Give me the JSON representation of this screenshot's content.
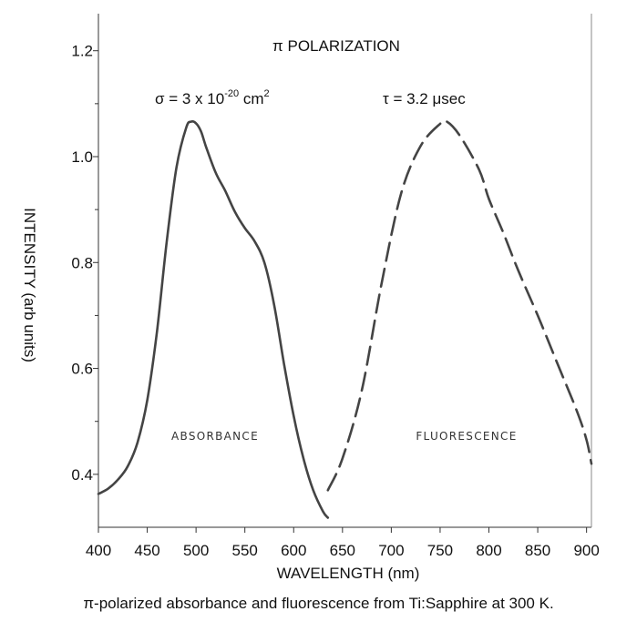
{
  "chart_data": {
    "type": "line",
    "title": "π POLARIZATION",
    "xlabel": "WAVELENGTH (nm)",
    "ylabel": "INTENSITY (arb units)",
    "xlim": [
      400,
      905
    ],
    "ylim": [
      0.3,
      1.27
    ],
    "x_ticks": [
      400,
      450,
      500,
      550,
      600,
      650,
      700,
      750,
      800,
      850,
      900
    ],
    "y_ticks": [
      0.4,
      0.6,
      0.8,
      1.0,
      1.2
    ],
    "y_tick_labels": [
      "0.4",
      "0.6",
      "0.8",
      "1.0",
      "1.2"
    ],
    "grid": false,
    "annotations": {
      "absorption_cross_section": "σ = 3 x 10",
      "absorption_exponent": "-20",
      "absorption_unit": " cm",
      "absorption_unit_power": "2",
      "fluorescence_lifetime": "τ = 3.2 μsec"
    },
    "series": [
      {
        "name": "ABSORBANCE",
        "style": "solid",
        "color": "#444444",
        "x": [
          400,
          410,
          420,
          430,
          440,
          450,
          460,
          470,
          480,
          490,
          495,
          500,
          505,
          510,
          520,
          530,
          540,
          550,
          560,
          570,
          580,
          590,
          600,
          610,
          620,
          630,
          635
        ],
        "y": [
          0.363,
          0.373,
          0.39,
          0.415,
          0.46,
          0.54,
          0.67,
          0.84,
          0.98,
          1.055,
          1.066,
          1.063,
          1.048,
          1.02,
          0.97,
          0.935,
          0.895,
          0.865,
          0.84,
          0.8,
          0.72,
          0.61,
          0.51,
          0.43,
          0.37,
          0.33,
          0.318
        ]
      },
      {
        "name": "FLUORESCENCE",
        "style": "dashed",
        "color": "#444444",
        "x": [
          635,
          650,
          670,
          690,
          710,
          730,
          750,
          757,
          770,
          790,
          800,
          815,
          830,
          850,
          870,
          890,
          900,
          905
        ],
        "y": [
          0.37,
          0.43,
          0.56,
          0.76,
          0.93,
          1.02,
          1.062,
          1.066,
          1.04,
          0.975,
          0.92,
          0.855,
          0.785,
          0.7,
          0.61,
          0.52,
          0.465,
          0.42
        ]
      }
    ]
  },
  "caption": "π-polarized absorbance and fluorescence from Ti:Sapphire at 300 K."
}
